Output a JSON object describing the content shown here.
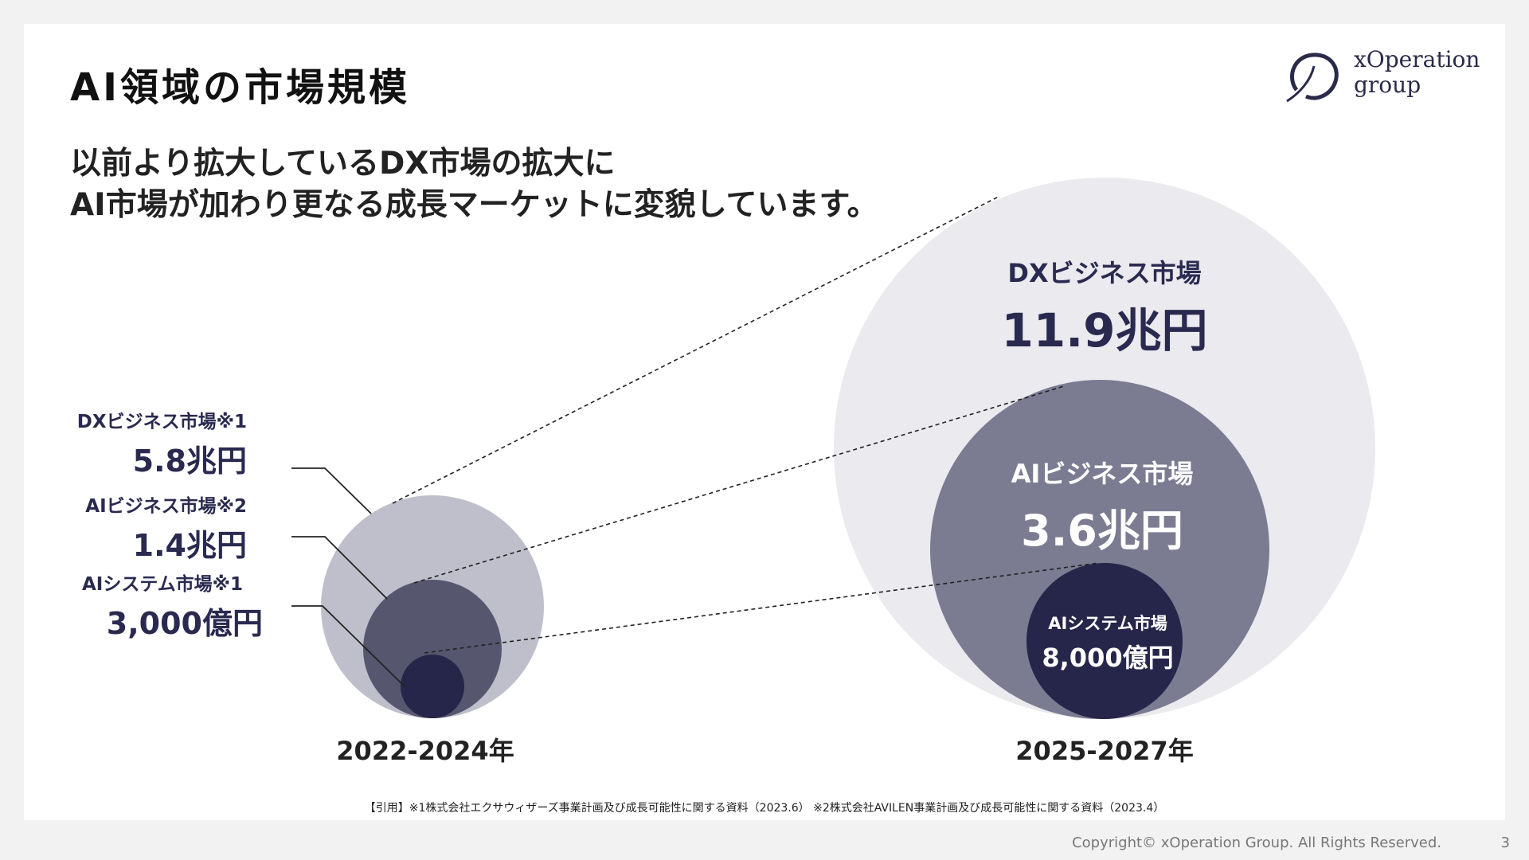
{
  "slide": {
    "title": "AI領域の市場規模",
    "logo": {
      "line1": "xOperation",
      "line2": "group"
    },
    "headline": {
      "line1": "以前より拡大しているDX市場の拡大に",
      "line2": "AI市場が加わり更なる成長マーケットに変貌しています。"
    }
  },
  "left": {
    "year": "2022-2024年",
    "items": [
      {
        "name": "DXビジネス市場※1",
        "value": "5.8兆円"
      },
      {
        "name": "AIビジネス市場※2",
        "value": "1.4兆円"
      },
      {
        "name": "AIシステム市場※1",
        "value": "3,000億円"
      }
    ]
  },
  "right": {
    "year": "2025-2027年",
    "items": [
      {
        "name": "DXビジネス市場",
        "value": "11.9兆円"
      },
      {
        "name": "AIビジネス市場",
        "value": "3.6兆円"
      },
      {
        "name": "AIシステム市場",
        "value": "8,000億円"
      }
    ]
  },
  "colors": {
    "dx_left": "#bfbfcc",
    "ai_left": "#56566f",
    "sys_left": "#26264a",
    "dx_right": "#eaeaef",
    "ai_right": "#7b7b92",
    "sys_right": "#26264a",
    "label": "#2a2a50"
  },
  "citation": "【引用】※1株式会社エクサウィザーズ事業計画及び成長可能性に関する資料（2023.6） ※2株式会社AVILEN事業計画及び成長可能性に関する資料（2023.4）",
  "footer": {
    "copyright": "Copyright© xOperation Group. All Rights Reserved.",
    "page": "3"
  }
}
